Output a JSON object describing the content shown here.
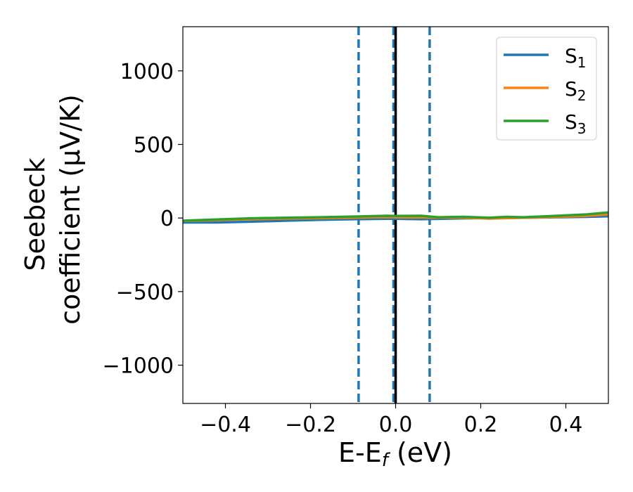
{
  "chart_data": {
    "type": "line",
    "xlabel": "E-E",
    "xlabel_sub": "f",
    "xlabel_unit": " (eV)",
    "ylabel_line1": "Seebeck",
    "ylabel_line2": "coefficient  (μV/K)",
    "xlim": [
      -0.5,
      0.5
    ],
    "ylim": [
      -1260,
      1300
    ],
    "xticks": [
      -0.4,
      -0.2,
      0.0,
      0.2,
      0.4
    ],
    "xtick_labels": [
      "−0.4",
      "−0.2",
      "0.0",
      "0.2",
      "0.4"
    ],
    "yticks": [
      -1000,
      -500,
      0,
      500,
      1000
    ],
    "ytick_labels": [
      "−1000",
      "−500",
      "0",
      "500",
      "1000"
    ],
    "grid": false,
    "legend_position": "top-right",
    "series": [
      {
        "name": "S",
        "sub": "1",
        "color": "#1f77b4",
        "x": [
          -0.5,
          -0.42,
          -0.34,
          -0.26,
          -0.18,
          -0.1,
          -0.02,
          0.0,
          0.06,
          0.1,
          0.16,
          0.22,
          0.3,
          0.38,
          0.45,
          0.5
        ],
        "y": [
          -30,
          -30,
          -25,
          -18,
          -12,
          -8,
          -5,
          -5,
          -8,
          -6,
          -2,
          0,
          2,
          5,
          8,
          12
        ]
      },
      {
        "name": "S",
        "sub": "2",
        "color": "#ff7f0e",
        "x": [
          -0.5,
          -0.42,
          -0.34,
          -0.26,
          -0.18,
          -0.1,
          -0.02,
          0.0,
          0.06,
          0.1,
          0.16,
          0.22,
          0.3,
          0.38,
          0.45,
          0.5
        ],
        "y": [
          -20,
          -15,
          -8,
          -4,
          -1,
          3,
          6,
          5,
          4,
          3,
          2,
          -4,
          2,
          8,
          15,
          25
        ]
      },
      {
        "name": "S",
        "sub": "3",
        "color": "#2ca02c",
        "x": [
          -0.5,
          -0.42,
          -0.34,
          -0.26,
          -0.18,
          -0.1,
          -0.02,
          0.0,
          0.06,
          0.1,
          0.16,
          0.22,
          0.26,
          0.3,
          0.38,
          0.45,
          0.5
        ],
        "y": [
          -18,
          -10,
          -2,
          2,
          5,
          10,
          15,
          14,
          15,
          5,
          8,
          2,
          8,
          5,
          15,
          25,
          38
        ]
      }
    ],
    "vlines": [
      {
        "x": -0.087,
        "style": "dashed",
        "color": "#1f77b4"
      },
      {
        "x": -0.005,
        "style": "dashed",
        "color": "#1f77b4"
      },
      {
        "x": 0.0,
        "style": "solid",
        "color": "#000000"
      },
      {
        "x": 0.08,
        "style": "dashed",
        "color": "#1f77b4"
      }
    ]
  }
}
